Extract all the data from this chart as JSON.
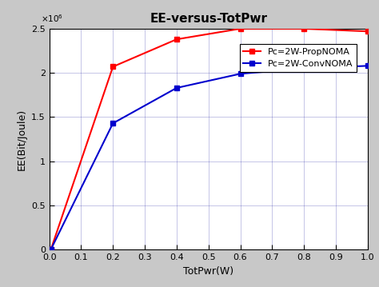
{
  "title": "EE-versus-TotPwr",
  "xlabel": "TotPwr(W)",
  "ylabel": "EE(Bit/Joule)",
  "xlim": [
    0,
    1.0
  ],
  "ylim": [
    0,
    2500000.0
  ],
  "x_ticks": [
    0,
    0.1,
    0.2,
    0.3,
    0.4,
    0.5,
    0.6,
    0.7,
    0.8,
    0.9,
    1.0
  ],
  "y_ticks": [
    0,
    500000,
    1000000,
    1500000,
    2000000,
    2500000
  ],
  "y_tick_labels": [
    "0",
    "0.5",
    "1",
    "1.5",
    "2",
    "2.5"
  ],
  "red_x": [
    0.0,
    0.005,
    0.2,
    0.4,
    0.6,
    0.8,
    1.0
  ],
  "red_y": [
    0.0,
    2000,
    2070000.0,
    2380000.0,
    2500000.0,
    2500000.0,
    2470000.0
  ],
  "blue_x": [
    0.0,
    0.005,
    0.2,
    0.4,
    0.6,
    0.8,
    1.0
  ],
  "blue_y": [
    0.0,
    2000,
    1430000.0,
    1830000.0,
    1990000.0,
    2050000.0,
    2080000.0
  ],
  "red_color": "#FF0000",
  "blue_color": "#0000CD",
  "red_label": "Pc=2W-PropNOMA",
  "blue_label": "Pc=2W-ConvNOMA",
  "marker_size": 5,
  "line_width": 1.5,
  "background_color": "#C8C8C8",
  "plot_bg_color": "#FFFFFF",
  "grid_color": "#3333AA",
  "title_fontsize": 11,
  "label_fontsize": 9,
  "tick_fontsize": 8,
  "legend_fontsize": 8
}
